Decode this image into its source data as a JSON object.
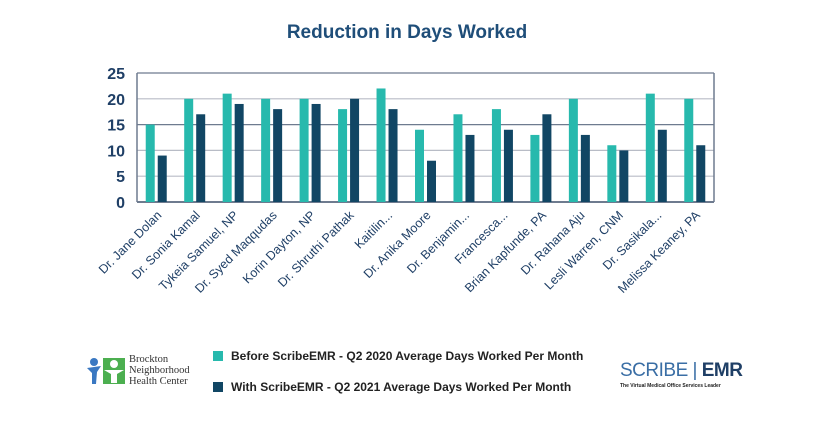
{
  "chart_data": {
    "type": "bar",
    "title": "Reduction in Days Worked",
    "categories": [
      "Dr. Jane Dolan",
      "Dr. Sonia Kamal",
      "Tykeia Samuel, NP",
      "Dr. Syed Maqqudas",
      "Korin Dayton, NP",
      "Dr. Shruthi Pathak",
      "Kaitilin...",
      "Dr. Anika Moore",
      "Dr. Benjamin...",
      "Francesca...",
      "Brian Kapfunde, PA",
      "Dr. Rahana Aju",
      "Lesli Warren, CNM",
      "Dr. Sasikala...",
      "Melissa Keaney, PA"
    ],
    "series": [
      {
        "name": "Before ScribeEMR - Q2 2020 Average Days Worked Per Month",
        "color": "#27b9ad",
        "values": [
          15,
          20,
          21,
          20,
          20,
          18,
          22,
          14,
          17,
          18,
          13,
          20,
          11,
          21,
          20
        ]
      },
      {
        "name": "With ScribeEMR - Q2 2021 Average Days Worked Per Month",
        "color": "#114664",
        "values": [
          9,
          17,
          19,
          18,
          19,
          20,
          18,
          8,
          13,
          14,
          17,
          13,
          10,
          14,
          11
        ]
      }
    ],
    "ylim": [
      0,
      25
    ],
    "yticks": [
      0,
      5,
      10,
      15,
      20,
      25
    ],
    "grid": true,
    "legend": "bottom"
  },
  "logos": {
    "left": "Brockton Neighborhood Health Center",
    "left_lines": [
      "Brockton",
      "Neighborhood",
      "Health Center"
    ],
    "right_main_a": "SCRIBE",
    "right_main_b": "EMR",
    "right_tagline": "The Virtual Medical Office Services Leader"
  }
}
